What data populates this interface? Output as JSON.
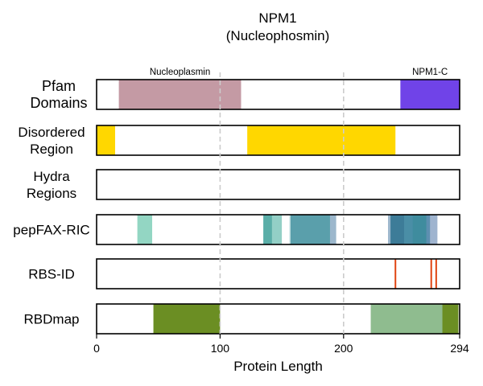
{
  "chart_data": {
    "type": "track",
    "title": "NPM1",
    "subtitle": "(Nucleophosmin)",
    "xlabel": "Protein Length",
    "xlim": [
      0,
      294
    ],
    "xticks": [
      0,
      100,
      200,
      294
    ],
    "xtick_labels": [
      "0",
      "100",
      "200",
      "294"
    ],
    "vertical_gridlines": [
      100,
      200
    ],
    "tracks": [
      {
        "key": "pfam",
        "label_lines": [
          "Pfam",
          "Domains"
        ],
        "segments": [
          {
            "start": 18,
            "end": 117,
            "color": "#c49aa4",
            "label": "Nucleoplasmin"
          },
          {
            "start": 246,
            "end": 294,
            "color": "#7043e8",
            "label": "NPM1-C"
          }
        ]
      },
      {
        "key": "disordered",
        "label_lines": [
          "Disordered",
          "Region"
        ],
        "segments": [
          {
            "start": 0,
            "end": 15,
            "color": "#ffd700"
          },
          {
            "start": 122,
            "end": 242,
            "color": "#ffd700"
          }
        ]
      },
      {
        "key": "hydra",
        "label_lines": [
          "Hydra",
          "Regions"
        ],
        "segments": []
      },
      {
        "key": "pepfax",
        "label_lines": [
          "pepFAX-RIC"
        ],
        "segments": [
          {
            "start": 33,
            "end": 45,
            "color": "#93d6c3"
          },
          {
            "start": 135,
            "end": 143,
            "color": "#5aaea8"
          },
          {
            "start": 142,
            "end": 150,
            "color": "#93cfc6"
          },
          {
            "start": 156,
            "end": 158,
            "color": "#cfe7e8"
          },
          {
            "start": 157,
            "end": 190,
            "color": "#5a9fab"
          },
          {
            "start": 189,
            "end": 194,
            "color": "#9cb7cc"
          },
          {
            "start": 236,
            "end": 239,
            "color": "#9cb7cc"
          },
          {
            "start": 238,
            "end": 250,
            "color": "#3d7c98"
          },
          {
            "start": 249,
            "end": 257,
            "color": "#4a8ea6"
          },
          {
            "start": 256,
            "end": 268,
            "color": "#3f8c9e"
          },
          {
            "start": 267,
            "end": 275,
            "color": "#5d8fb0"
          },
          {
            "start": 274,
            "end": 274.6,
            "color": "#6aa0b8"
          },
          {
            "start": 274.6,
            "end": 275.2,
            "color": "#4e86a0"
          },
          {
            "start": 272,
            "end": 274,
            "color": "#82a7c1"
          },
          {
            "start": 274,
            "end": 274.5,
            "color": "#3d7c98"
          },
          {
            "start": 274.5,
            "end": 275,
            "color": "#9cb7cc"
          },
          {
            "start": 270,
            "end": 276,
            "color": "#9fb4cf"
          }
        ]
      },
      {
        "key": "rbsid",
        "label_lines": [
          "RBS-ID"
        ],
        "lines": [
          {
            "position": 242,
            "color": "#e04412"
          },
          {
            "position": 271,
            "color": "#e04412"
          },
          {
            "position": 275,
            "color": "#e04412"
          }
        ]
      },
      {
        "key": "rbdmap",
        "label_lines": [
          "RBDmap"
        ],
        "segments": [
          {
            "start": 46,
            "end": 100,
            "color": "#6b8e23"
          },
          {
            "start": 222,
            "end": 280,
            "color": "#8fbc8f"
          },
          {
            "start": 280,
            "end": 293,
            "color": "#6b8e23"
          }
        ]
      }
    ]
  }
}
